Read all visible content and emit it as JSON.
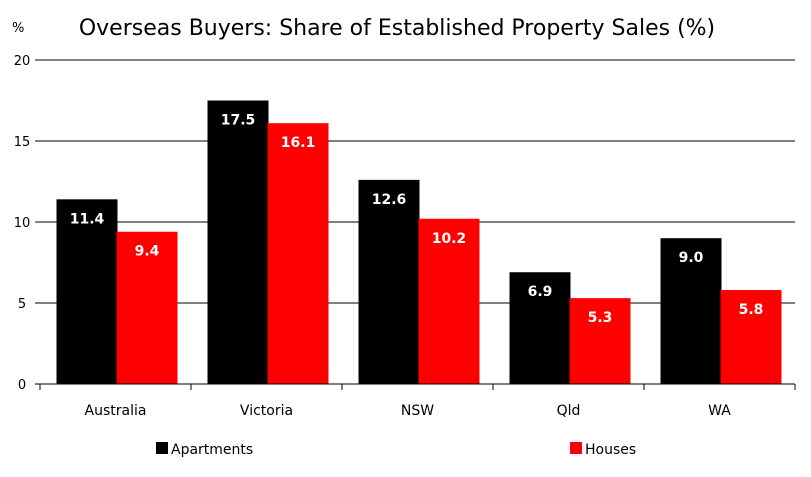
{
  "chart_data": {
    "type": "bar",
    "title": "Overseas Buyers: Share of Established Property Sales (%)",
    "unit_label": "%",
    "categories": [
      "Australia",
      "Victoria",
      "NSW",
      "Qld",
      "WA"
    ],
    "series": [
      {
        "name": "Apartments",
        "color": "#000000",
        "values": [
          11.4,
          17.5,
          12.6,
          6.9,
          9.0
        ],
        "labels": [
          "11.4",
          "17.5",
          "12.6",
          "6.9",
          "9.0"
        ]
      },
      {
        "name": "Houses",
        "color": "#ff0000",
        "values": [
          9.4,
          16.1,
          10.2,
          5.3,
          5.8
        ],
        "labels": [
          "9.4",
          "16.1",
          "10.2",
          "5.3",
          "5.8"
        ]
      }
    ],
    "ylim": [
      0,
      20
    ],
    "yticks": [
      0,
      5,
      10,
      15,
      20
    ],
    "ytick_labels": [
      "0",
      "5",
      "10",
      "15",
      "20"
    ],
    "grid": true,
    "legend_position": "bottom"
  }
}
